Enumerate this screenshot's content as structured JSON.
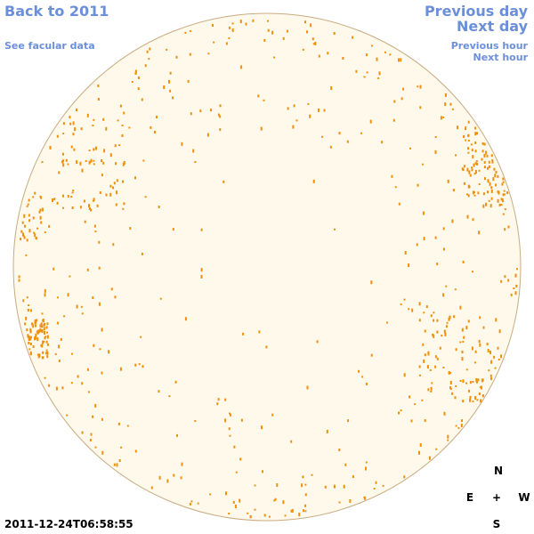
{
  "links": {
    "back": "Back to 2011",
    "facular": "See facular data",
    "previous_day": "Previous day",
    "next_day": "Next day",
    "previous_hour": "Previous hour",
    "next_hour": "Next hour"
  },
  "timestamp": "2011-12-24T06:58:55",
  "compass": {
    "north": "N",
    "east": "E",
    "center": "+",
    "west": "W",
    "south": "S"
  }
}
